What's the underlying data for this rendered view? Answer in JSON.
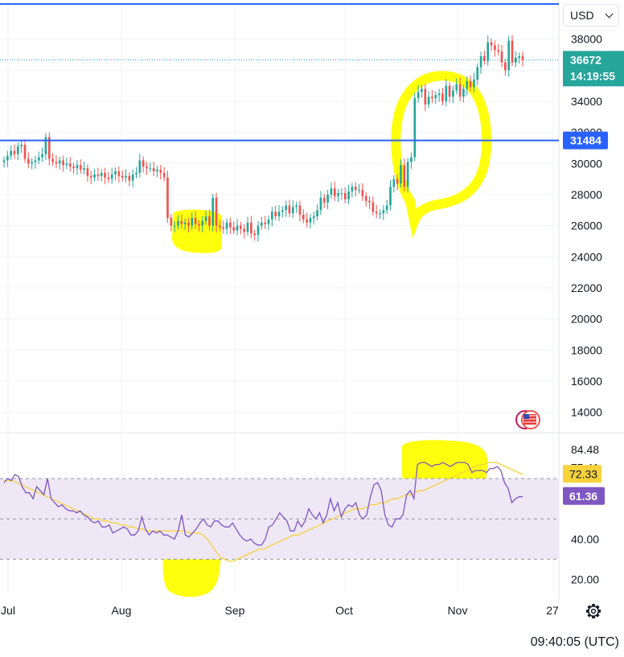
{
  "toolbar": {
    "currency": "USD"
  },
  "status": {
    "time": "09:40:05 (UTC)"
  },
  "colors": {
    "up": "#26a69a",
    "down": "#ef5350",
    "hline": "#2962ff",
    "highlight": "#ffff00",
    "rsi": "#7e57c2",
    "rsi_ma": "#f7d23b",
    "rsi_band": "#ede7f6",
    "grid": "#f0f3fa"
  },
  "icons": {
    "settings": "gear-icon",
    "flag": "us-flag-icon",
    "dropdown": "chevron-down-icon"
  },
  "chart_data": [
    {
      "type": "candlestick",
      "x_ticks": [
        "Jul",
        "Aug",
        "Sep",
        "Oct",
        "Nov",
        "27"
      ],
      "y_ticks": [
        "38000",
        "36000",
        "34000",
        "32000",
        "30000",
        "28000",
        "26000",
        "24000",
        "22000",
        "20000",
        "18000",
        "16000",
        "14000"
      ],
      "ylim": [
        13000,
        40000
      ],
      "last_price": {
        "value": "36672",
        "countdown": "14:19:55"
      },
      "hline": {
        "value": "31484"
      },
      "series": {
        "close": [
          30200,
          30500,
          30800,
          30600,
          31100,
          31200,
          30300,
          30000,
          30100,
          30200,
          30400,
          30600,
          31700,
          30300,
          30100,
          30000,
          30200,
          29900,
          30000,
          29800,
          29700,
          29900,
          29600,
          29700,
          29200,
          29100,
          29300,
          29200,
          29400,
          29100,
          29000,
          29300,
          29500,
          29200,
          29100,
          29200,
          28900,
          29300,
          29400,
          30200,
          29800,
          29700,
          29700,
          29500,
          29600,
          29400,
          29100,
          26500,
          26000,
          26000,
          26300,
          26100,
          26200,
          26000,
          26500,
          26100,
          26000,
          26300,
          26600,
          26000,
          27800,
          26000,
          25900,
          25800,
          26200,
          25900,
          25700,
          26000,
          25800,
          25600,
          26200,
          25500,
          25400,
          26000,
          26200,
          26100,
          26400,
          26900,
          26600,
          26900,
          27000,
          27300,
          26800,
          27200,
          27300,
          26700,
          26400,
          26200,
          26500,
          26600,
          27000,
          27800,
          27500,
          28000,
          28400,
          27900,
          28100,
          28100,
          27700,
          28200,
          28500,
          28300,
          28300,
          27900,
          27600,
          27500,
          26900,
          26800,
          26800,
          27000,
          27300,
          28500,
          29000,
          28700,
          29900,
          28500,
          30100,
          30400,
          34200,
          34600,
          34800,
          33800,
          34300,
          34200,
          34400,
          34500,
          34000,
          35000,
          34300,
          34700,
          35100,
          34300,
          34800,
          35300,
          34900,
          35400,
          36200,
          36900,
          36600,
          37800,
          37600,
          37300,
          37200,
          36500,
          36000,
          37900,
          36500,
          36800,
          36900,
          36672
        ]
      }
    },
    {
      "type": "line",
      "title": "",
      "y_ticks": [
        "84.48",
        "75.41",
        "40.00",
        "20.00"
      ],
      "ylim": [
        13,
        92
      ],
      "bands": [
        30,
        50,
        70
      ],
      "series": [
        {
          "label": "61.36",
          "values": [
            68,
            70,
            69,
            72,
            71,
            66,
            63,
            63,
            60,
            66,
            64,
            62,
            70,
            60,
            58,
            56,
            57,
            55,
            54,
            54,
            53,
            54,
            52,
            51,
            49,
            48,
            49,
            46,
            46,
            47,
            43,
            44,
            45,
            46,
            45,
            42,
            42,
            44,
            51,
            45,
            42,
            44,
            43,
            44,
            42,
            42,
            41,
            40,
            44,
            52,
            42,
            41,
            43,
            45,
            48,
            50,
            47,
            46,
            49,
            49,
            47,
            46,
            46,
            48,
            45,
            42,
            40,
            39,
            40,
            38,
            37,
            37,
            40,
            46,
            47,
            50,
            53,
            51,
            49,
            44,
            44,
            49,
            46,
            49,
            55,
            52,
            50,
            53,
            48,
            52,
            60,
            54,
            58,
            51,
            55,
            57,
            56,
            58,
            52,
            50,
            52,
            61,
            67,
            68,
            64,
            52,
            47,
            46,
            50,
            50,
            52,
            62,
            64,
            60,
            77,
            78,
            78,
            77,
            76,
            77,
            77,
            78,
            77,
            76,
            77,
            78,
            78,
            78,
            77,
            73,
            74,
            74,
            74,
            73,
            75,
            75,
            76,
            74,
            68,
            65,
            58,
            60,
            61,
            61
          ]
        },
        {
          "label": "72.33",
          "values": [
            69,
            69,
            69,
            68,
            67,
            66,
            65,
            64,
            63,
            62,
            61,
            60,
            59,
            58,
            57,
            56,
            55,
            54,
            53,
            52,
            51,
            50,
            50,
            49,
            49,
            48,
            48,
            47,
            47,
            46,
            46,
            45,
            45,
            44,
            44,
            44,
            44,
            44,
            44,
            44,
            44,
            44,
            44,
            43,
            43,
            43,
            42,
            40,
            37,
            34,
            31,
            30,
            29,
            29,
            30,
            31,
            32,
            33,
            34,
            35,
            35,
            36,
            37,
            38,
            39,
            40,
            41,
            42,
            42,
            43,
            44,
            45,
            46,
            47,
            48,
            49,
            50,
            51,
            52,
            53,
            54,
            55,
            55,
            55,
            56,
            57,
            57,
            58,
            58,
            59,
            60,
            60,
            61,
            62,
            62,
            63,
            64,
            64,
            65,
            66,
            67,
            68,
            69,
            70,
            71,
            72,
            73,
            74,
            75,
            76,
            77,
            77,
            78,
            78,
            78,
            77,
            76,
            75,
            74,
            73,
            72
          ]
        }
      ],
      "xlabel": "",
      "ylabel": ""
    }
  ]
}
